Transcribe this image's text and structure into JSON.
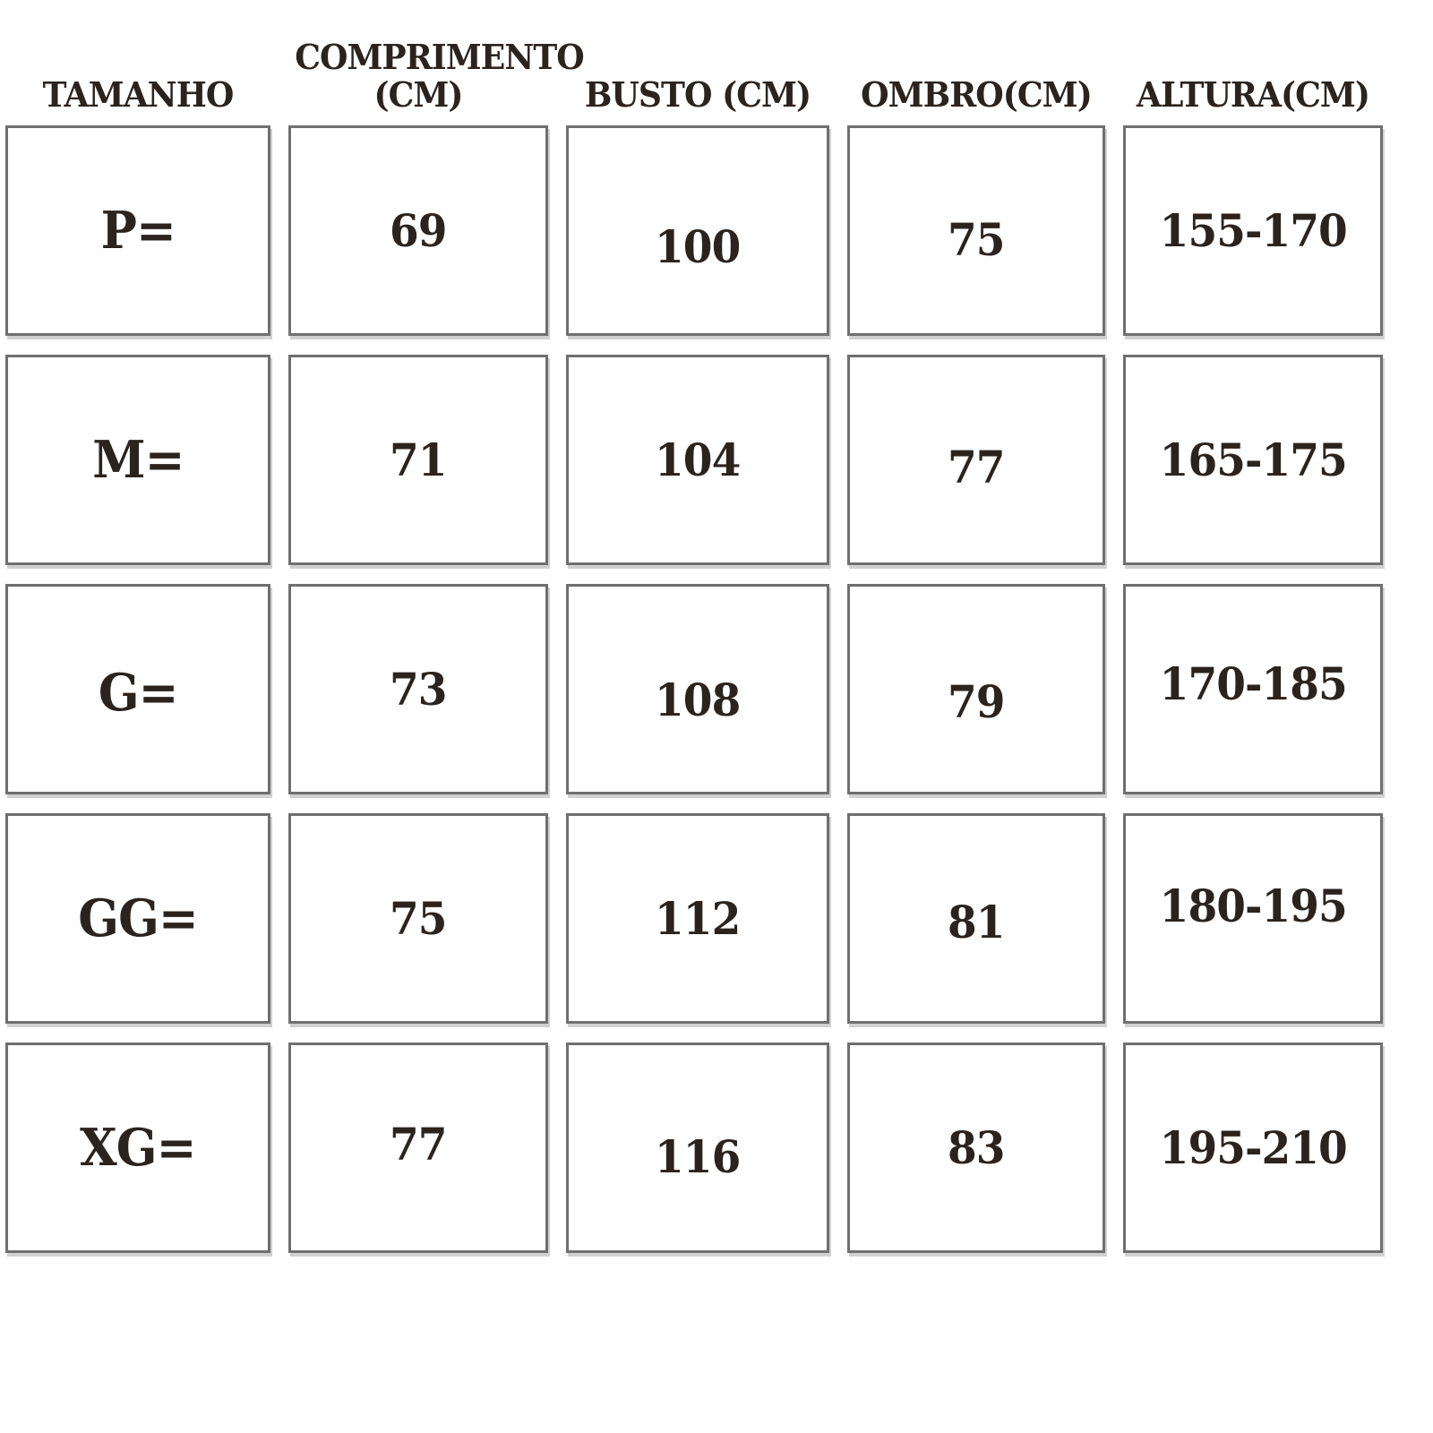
{
  "colors": {
    "background": "#ffffff",
    "text": "#2b231e",
    "cell_border": "#6f6f6f"
  },
  "table": {
    "header_slugs": [
      "tamanho",
      "comprimento",
      "busto",
      "ombro",
      "altura"
    ],
    "headers": [
      "TAMANHO",
      "COMPRIMENTO\n(CM)",
      "BUSTO (CM)",
      "OMBRO(CM)",
      "ALTURA(CM)"
    ],
    "rows": [
      [
        "P=",
        "69",
        "100",
        "75",
        "155-170"
      ],
      [
        "M=",
        "71",
        "104",
        "77",
        "165-175"
      ],
      [
        "G=",
        "73",
        "108",
        "79",
        "170-185"
      ],
      [
        "GG=",
        "75",
        "112",
        "81",
        "180-195"
      ],
      [
        "XG=",
        "77",
        "116",
        "83",
        "195-210"
      ]
    ]
  },
  "chart_data": {
    "type": "table",
    "title": "",
    "columns": [
      "TAMANHO",
      "COMPRIMENTO (CM)",
      "BUSTO (CM)",
      "OMBRO(CM)",
      "ALTURA(CM)"
    ],
    "rows": [
      [
        "P=",
        69,
        100,
        75,
        "155-170"
      ],
      [
        "M=",
        71,
        104,
        77,
        "165-175"
      ],
      [
        "G=",
        73,
        108,
        79,
        "170-185"
      ],
      [
        "GG=",
        75,
        112,
        81,
        "180-195"
      ],
      [
        "XG=",
        77,
        116,
        83,
        "195-210"
      ]
    ],
    "layout_hints": {
      "cells_drawn_as_separate_boxes": true,
      "header_outside_boxes": true,
      "grid_on": true
    }
  }
}
